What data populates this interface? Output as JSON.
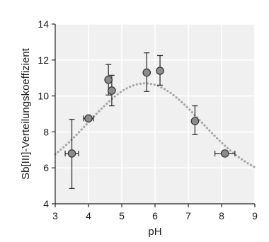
{
  "chart_data": {
    "type": "scatter",
    "title": "",
    "xlabel": "pH",
    "ylabel": "Sb[III]-Verteilungskoeffizient",
    "xlim": [
      3,
      9
    ],
    "ylim": [
      4,
      14
    ],
    "xticks": [
      3,
      4,
      5,
      6,
      7,
      8,
      9
    ],
    "yticks": [
      4,
      6,
      8,
      10,
      12,
      14
    ],
    "grid": true,
    "colors": {
      "background": "#f0f0f0",
      "grid": "#ffffff",
      "marker_fill": "#8c8c8c",
      "marker_edge": "#333333",
      "fit_curve": "#a6a6a6"
    },
    "points": [
      {
        "x": 3.5,
        "y": 6.8,
        "xerr": 0.2,
        "yerr_low": 4.85,
        "yerr_high": 8.7
      },
      {
        "x": 4.0,
        "y": 8.75,
        "xerr": 0.15,
        "yerr_low": null,
        "yerr_high": null
      },
      {
        "x": 4.6,
        "y": 10.9,
        "xerr": null,
        "yerr_low": 10.05,
        "yerr_high": 11.75
      },
      {
        "x": 4.7,
        "y": 10.3,
        "xerr": null,
        "yerr_low": 9.45,
        "yerr_high": 11.15
      },
      {
        "x": 5.75,
        "y": 11.3,
        "xerr": null,
        "yerr_low": 10.25,
        "yerr_high": 12.4
      },
      {
        "x": 6.15,
        "y": 11.4,
        "xerr": null,
        "yerr_low": 10.6,
        "yerr_high": 12.25
      },
      {
        "x": 7.2,
        "y": 8.6,
        "xerr": null,
        "yerr_low": 7.85,
        "yerr_high": 9.45
      },
      {
        "x": 8.1,
        "y": 6.8,
        "xerr": 0.3,
        "yerr_low": null,
        "yerr_high": null
      }
    ],
    "fit_curve": {
      "style": "dotted",
      "peak_x": 5.7,
      "peak_y": 10.7,
      "baseline_y": 5.2,
      "sigma": 1.7,
      "x_range": [
        3,
        9
      ]
    }
  }
}
